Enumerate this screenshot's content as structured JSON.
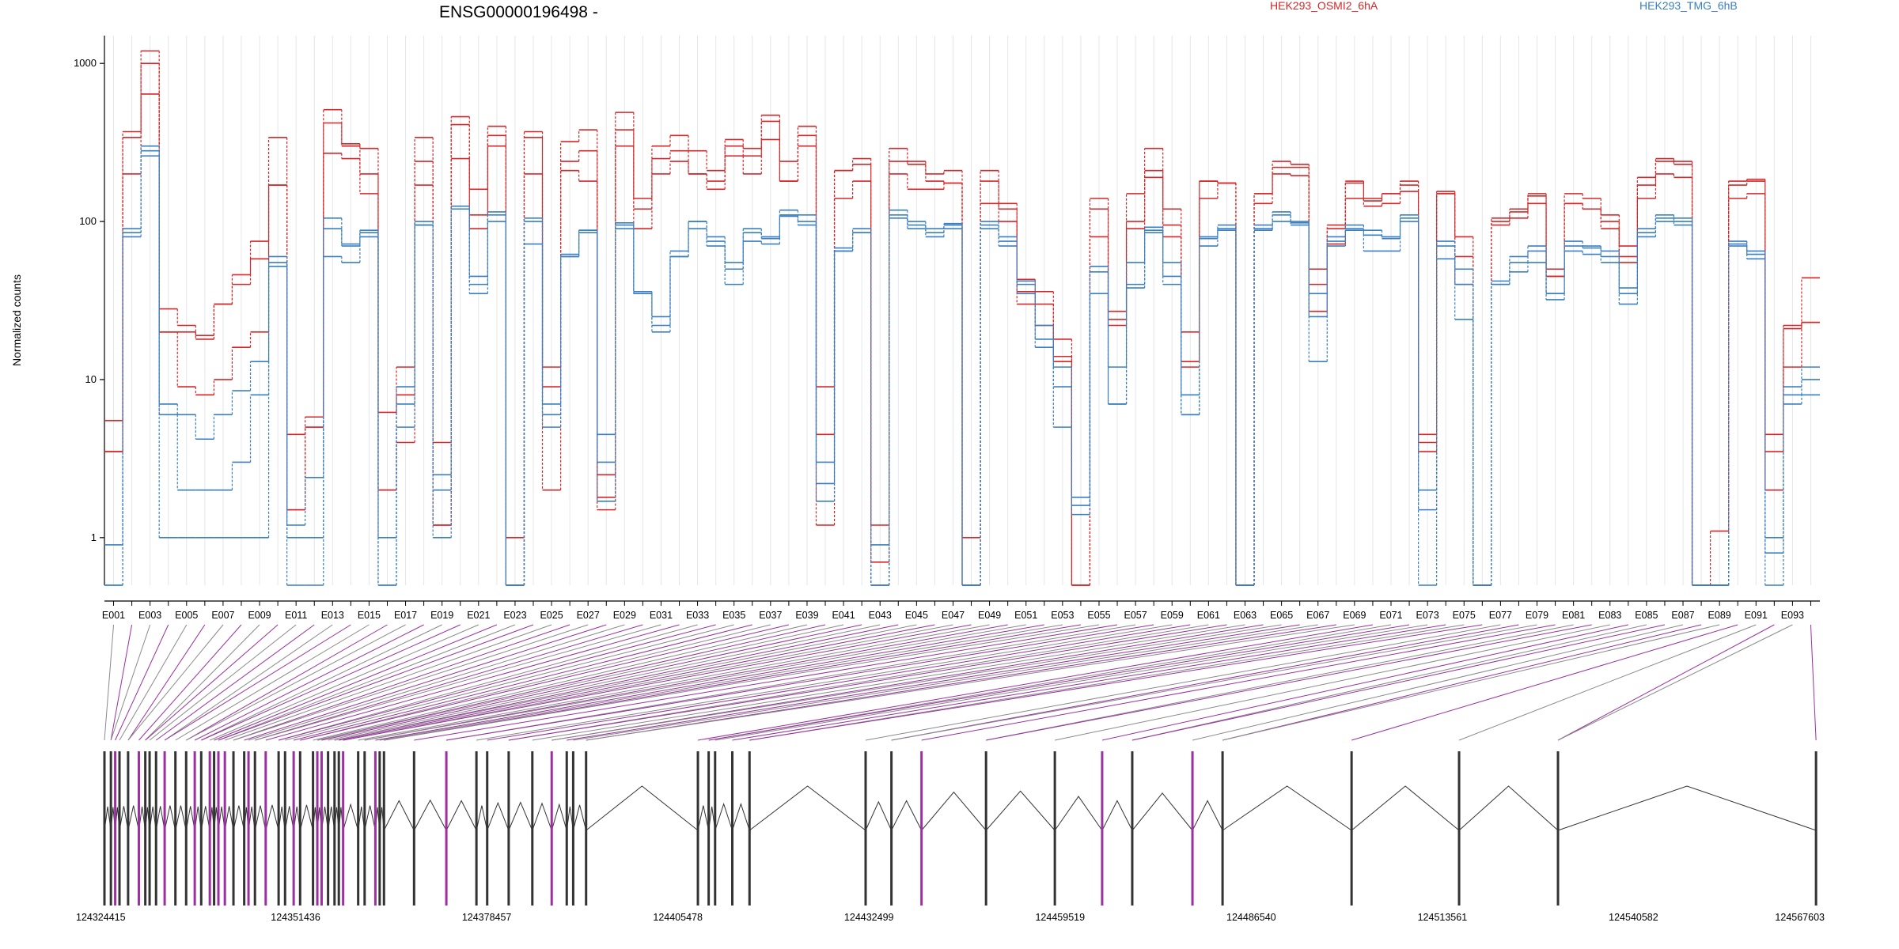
{
  "chart_data": {
    "type": "line",
    "title": "ENSG00000196498 -",
    "ylabel": "Normalized counts",
    "yscale": "log",
    "ylim": [
      0.5,
      1500
    ],
    "yticks": [
      1,
      10,
      100,
      1000
    ],
    "ytick_labels": [
      "1",
      "10",
      "100",
      "1000"
    ],
    "grid": "vertical exon gridlines",
    "legend_placement": "top-right",
    "colors": {
      "HEK293_OSMI2_6hA": "#d62728",
      "HEK293_TMG_6hB": "#3a7fc1",
      "diff_exon": "#9b30a0",
      "exon": "#333333"
    },
    "categories": [
      "E001",
      "E002",
      "E003",
      "E004",
      "E005",
      "E006",
      "E007",
      "E008",
      "E009",
      "E010",
      "E011",
      "E012",
      "E013",
      "E014",
      "E015",
      "E016",
      "E017",
      "E018",
      "E019",
      "E020",
      "E021",
      "E022",
      "E023",
      "E024",
      "E025",
      "E026",
      "E027",
      "E028",
      "E029",
      "E030",
      "E031",
      "E032",
      "E033",
      "E034",
      "E035",
      "E036",
      "E037",
      "E038",
      "E039",
      "E040",
      "E041",
      "E042",
      "E043",
      "E044",
      "E045",
      "E046",
      "E047",
      "E048",
      "E049",
      "E050",
      "E051",
      "E052",
      "E053",
      "E054",
      "E055",
      "E056",
      "E057",
      "E058",
      "E059",
      "E060",
      "E061",
      "E062",
      "E063",
      "E064",
      "E065",
      "E066",
      "E067",
      "E068",
      "E069",
      "E070",
      "E071",
      "E072",
      "E073",
      "E074",
      "E075",
      "E076",
      "E077",
      "E078",
      "E079",
      "E080",
      "E081",
      "E082",
      "E083",
      "E084",
      "E085",
      "E086",
      "E087",
      "E088",
      "E089",
      "E090",
      "E091",
      "E092",
      "E093",
      "E094"
    ],
    "series": [
      {
        "name": "HEK293_OSMI2_6hA",
        "group": "HEK293_OSMI2_6hA",
        "values": [
          5.5,
          370,
          1200,
          28,
          22,
          19,
          30,
          46,
          75,
          340,
          4.5,
          5.8,
          510,
          310,
          290,
          6.2,
          12,
          340,
          4.0,
          460,
          160,
          400,
          1.0,
          370,
          12,
          320,
          380,
          2.5,
          490,
          140,
          300,
          350,
          280,
          210,
          330,
          290,
          470,
          240,
          400,
          9,
          210,
          250,
          1.2,
          290,
          240,
          200,
          210,
          1.0,
          210,
          130,
          43,
          36,
          18,
          0.5,
          140,
          27,
          150,
          290,
          120,
          20,
          180,
          175,
          0.5,
          150,
          240,
          230,
          50,
          95,
          180,
          140,
          150,
          180,
          4.5,
          155,
          80,
          0.5,
          105,
          120,
          150,
          50,
          150,
          140,
          110,
          70,
          190,
          250,
          240,
          0.5,
          1.1,
          180,
          185,
          4.5,
          22,
          44
        ]
      },
      {
        "name": "",
        "group": "HEK293_OSMI2_6hA",
        "values": [
          3.5,
          200,
          1000,
          20,
          9,
          8,
          10,
          16,
          20,
          170,
          1.5,
          5.0,
          270,
          250,
          200,
          2.0,
          4.0,
          170,
          1.2,
          250,
          110,
          300,
          0.5,
          200,
          2.0,
          240,
          280,
          1.8,
          300,
          120,
          200,
          240,
          200,
          160,
          260,
          200,
          330,
          180,
          300,
          4.5,
          140,
          180,
          0.5,
          200,
          160,
          160,
          175,
          0.5,
          130,
          100,
          36,
          30,
          14,
          0.5,
          120,
          22,
          100,
          190,
          95,
          12,
          140,
          175,
          0.5,
          130,
          200,
          195,
          27,
          72,
          140,
          125,
          130,
          155,
          3.5,
          150,
          40,
          0.5,
          100,
          105,
          130,
          45,
          130,
          120,
          90,
          60,
          140,
          200,
          190,
          0.5,
          0.5,
          140,
          150,
          2.0,
          12,
          23
        ]
      },
      {
        "name": "",
        "group": "HEK293_OSMI2_6hA",
        "values": [
          3.5,
          340,
          640,
          20,
          20,
          18,
          30,
          40,
          58,
          170,
          1.5,
          5.0,
          420,
          300,
          150,
          2.0,
          8.0,
          240,
          1.2,
          410,
          90,
          350,
          0.5,
          340,
          9,
          210,
          180,
          1.5,
          380,
          90,
          250,
          280,
          200,
          180,
          300,
          260,
          430,
          180,
          350,
          1.2,
          210,
          230,
          0.7,
          240,
          230,
          180,
          175,
          0.5,
          180,
          120,
          30,
          22,
          13,
          0.5,
          80,
          24,
          90,
          210,
          80,
          13,
          180,
          175,
          0.5,
          150,
          220,
          220,
          40,
          90,
          175,
          135,
          150,
          170,
          4.0,
          150,
          60,
          0.5,
          95,
          115,
          145,
          45,
          130,
          120,
          100,
          55,
          170,
          240,
          230,
          0.5,
          0.5,
          170,
          180,
          3.5,
          21,
          23
        ]
      },
      {
        "name": "HEK293_TMG_6hB",
        "group": "HEK293_TMG_6hB",
        "values": [
          0.9,
          90,
          300,
          7,
          6,
          4.2,
          6,
          8.5,
          13,
          60,
          1.2,
          2.4,
          105,
          72,
          88,
          1.0,
          9,
          100,
          2.5,
          125,
          45,
          115,
          0.5,
          105,
          7,
          62,
          88,
          4.5,
          98,
          36,
          25,
          60,
          100,
          80,
          55,
          90,
          80,
          118,
          110,
          3.0,
          68,
          90,
          0.9,
          118,
          100,
          90,
          97,
          0.5,
          100,
          80,
          42,
          22,
          12,
          1.8,
          52,
          12,
          55,
          92,
          55,
          8,
          80,
          95,
          0.5,
          95,
          115,
          100,
          35,
          80,
          95,
          88,
          80,
          110,
          2.0,
          75,
          50,
          0.5,
          42,
          60,
          70,
          35,
          75,
          70,
          65,
          38,
          90,
          110,
          105,
          0.5,
          0.5,
          75,
          65,
          1.0,
          9,
          12
        ]
      },
      {
        "name": "",
        "group": "HEK293_TMG_6hB",
        "values": [
          0.5,
          80,
          280,
          6,
          2,
          2,
          2,
          3,
          8,
          55,
          1.0,
          1.0,
          90,
          70,
          80,
          0.5,
          7,
          95,
          2.0,
          120,
          40,
          110,
          0.5,
          100,
          6,
          60,
          85,
          3.0,
          95,
          35,
          22,
          65,
          100,
          75,
          50,
          85,
          78,
          110,
          100,
          2.2,
          65,
          85,
          0.5,
          110,
          95,
          85,
          95,
          0.5,
          95,
          75,
          40,
          18,
          9,
          1.6,
          48,
          7,
          40,
          88,
          45,
          6,
          78,
          90,
          0.5,
          90,
          110,
          98,
          25,
          75,
          90,
          82,
          78,
          105,
          1.5,
          70,
          40,
          0.5,
          40,
          55,
          65,
          35,
          70,
          68,
          60,
          35,
          85,
          105,
          100,
          0.5,
          0.5,
          72,
          62,
          0.8,
          8,
          10
        ]
      },
      {
        "name": "",
        "group": "HEK293_TMG_6hB",
        "values": [
          0.5,
          85,
          260,
          1.0,
          1.0,
          1.0,
          1.0,
          1.0,
          1.0,
          52,
          0.5,
          0.5,
          60,
          55,
          85,
          0.5,
          5,
          95,
          1.0,
          120,
          35,
          100,
          0.5,
          72,
          5,
          60,
          88,
          1.7,
          90,
          35,
          20,
          60,
          90,
          70,
          40,
          75,
          72,
          108,
          95,
          1.7,
          65,
          85,
          0.5,
          105,
          90,
          80,
          90,
          0.5,
          90,
          70,
          35,
          16,
          5,
          1.4,
          35,
          7,
          38,
          85,
          40,
          6,
          70,
          88,
          0.5,
          88,
          100,
          95,
          13,
          70,
          88,
          65,
          65,
          100,
          0.5,
          58,
          24,
          0.5,
          40,
          48,
          55,
          32,
          65,
          62,
          55,
          30,
          80,
          100,
          95,
          0.5,
          0.5,
          70,
          58,
          0.5,
          7,
          8
        ]
      }
    ],
    "exon_axis_labels": [
      "E001",
      "E003",
      "E005",
      "E007",
      "E009",
      "E011",
      "E013",
      "E015",
      "E017",
      "E019",
      "E021",
      "E023",
      "E025",
      "E027",
      "E029",
      "E031",
      "E033",
      "E035",
      "E037",
      "E039",
      "E041",
      "E043",
      "E045",
      "E047",
      "E049",
      "E051",
      "E053",
      "E055",
      "E057",
      "E059",
      "E061",
      "E063",
      "E065",
      "E067",
      "E069",
      "E071",
      "E073",
      "E075",
      "E077",
      "E079",
      "E081",
      "E083",
      "E085",
      "E087",
      "E089",
      "E091",
      "E093"
    ],
    "genomic_coordinates": [
      "124324415",
      "124351436",
      "124378457",
      "124405478",
      "124432499",
      "124459519",
      "124486540",
      "124513561",
      "124540582",
      "124567603"
    ],
    "gene_model": {
      "positions": [
        0,
        1.5,
        2.5,
        3.5,
        5.5,
        8,
        9.5,
        10.5,
        12,
        14,
        16.5,
        19,
        21,
        22.5,
        24.5,
        25.5,
        26.5,
        28,
        30,
        32.5,
        33.5,
        35,
        37.5,
        40.5,
        42,
        44,
        45.5,
        48.5,
        49.5,
        50.5,
        52,
        53.5,
        54.5,
        55.5,
        59,
        60.5,
        63,
        64,
        65,
        72,
        79.5,
        86.5,
        89,
        94,
        99.5,
        104,
        107.5,
        109,
        112,
        138,
        140.5,
        142,
        146,
        150,
        177,
        183,
        190,
        205,
        221,
        232,
        239,
        253,
        260,
        290,
        315,
        338,
        398
      ],
      "highlighted": [
        2,
        5,
        9,
        12,
        14,
        16,
        17,
        20,
        22,
        25,
        28,
        29,
        33,
        36,
        40,
        45,
        56,
        59,
        61
      ],
      "span": 400
    }
  }
}
